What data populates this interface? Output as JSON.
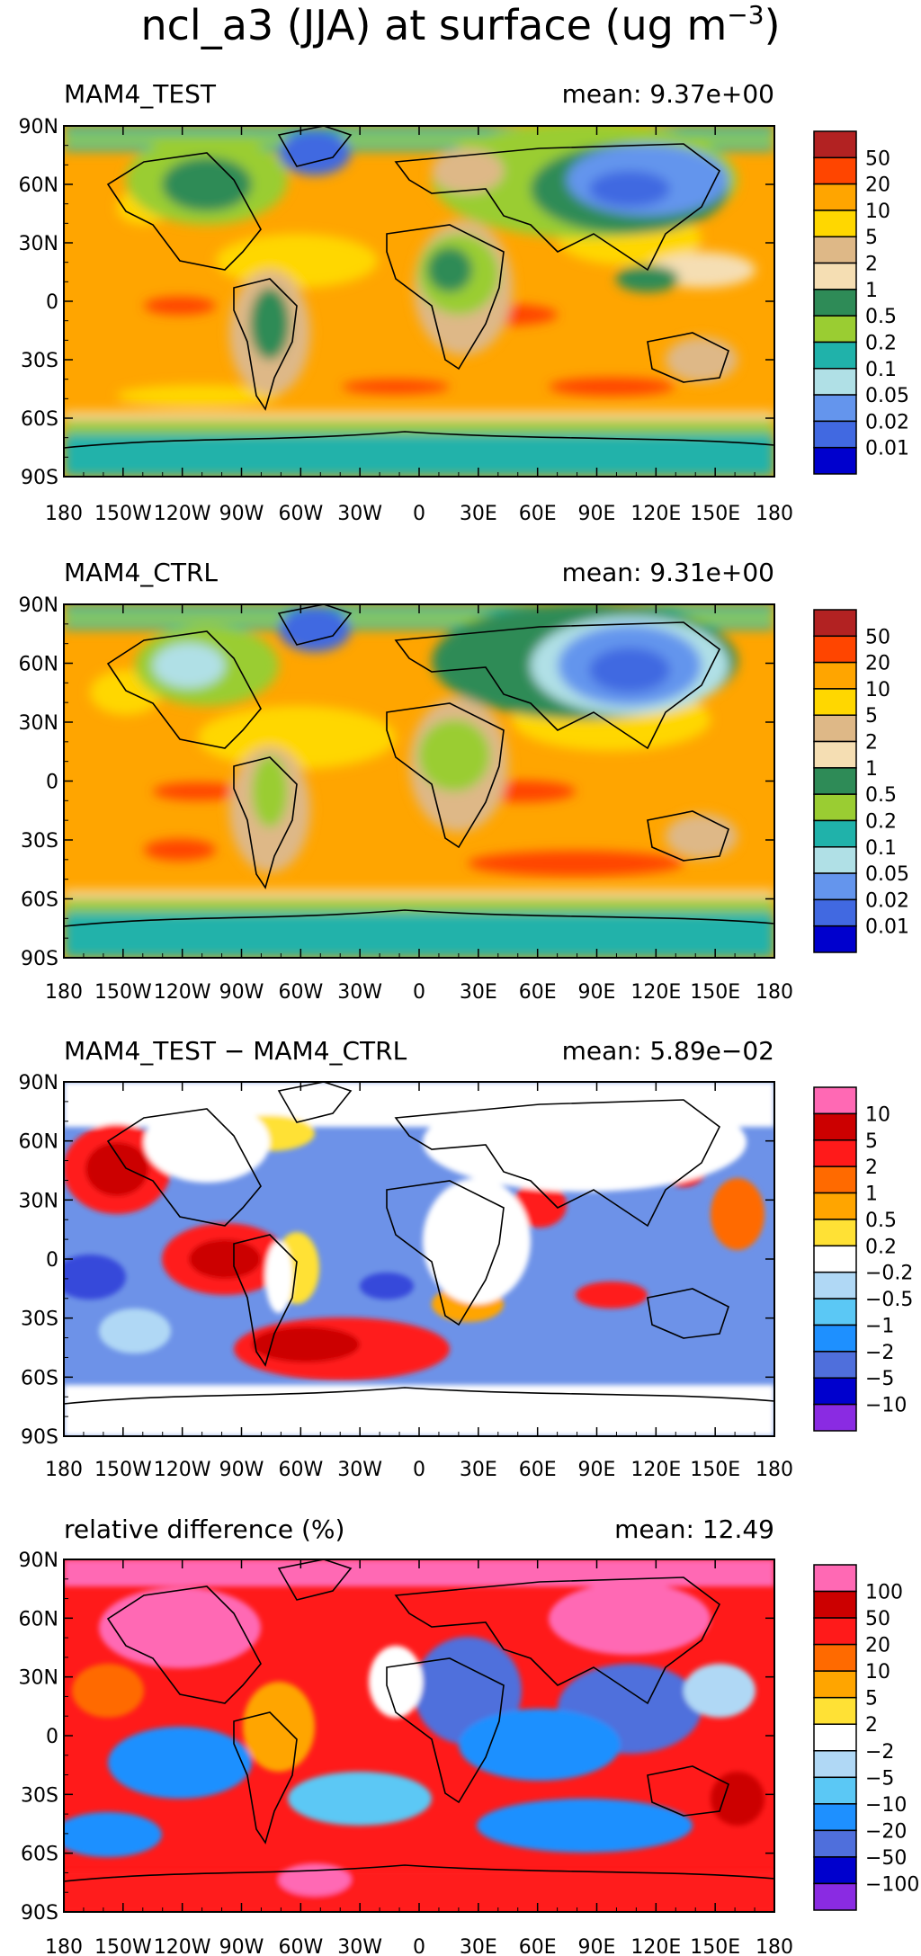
{
  "page": {
    "title": "ncl_a3 (JJA) at surface (ug m",
    "title_superscript": "−3",
    "title_close": ")"
  },
  "axes": {
    "xticks": [
      "180",
      "150W",
      "120W",
      "90W",
      "60W",
      "30W",
      "0",
      "30E",
      "60E",
      "90E",
      "120E",
      "150E",
      "180"
    ],
    "yticks": [
      "90N",
      "60N",
      "30N",
      "0",
      "30S",
      "60S",
      "90S"
    ]
  },
  "chart_data": [
    {
      "type": "heatmap",
      "title": "MAM4_TEST",
      "mean_label": "mean: 9.37e+00",
      "mean": 9.37,
      "xlim": [
        -180,
        180
      ],
      "ylim": [
        -90,
        90
      ],
      "colorbar_labels": [
        "50",
        "20",
        "10",
        "5",
        "2",
        "1",
        "0.5",
        "0.2",
        "0.1",
        "0.05",
        "0.02",
        "0.01"
      ],
      "colorbar_colors": [
        "#b22222",
        "#ff4500",
        "#ffa500",
        "#ffd700",
        "#deb887",
        "#f5deb3",
        "#2e8b57",
        "#9acd32",
        "#20b2aa",
        "#b0e0e6",
        "#6495ed",
        "#4169e1",
        "#0000cd"
      ]
    },
    {
      "type": "heatmap",
      "title": "MAM4_CTRL",
      "mean_label": "mean: 9.31e+00",
      "mean": 9.31,
      "xlim": [
        -180,
        180
      ],
      "ylim": [
        -90,
        90
      ],
      "colorbar_labels": [
        "50",
        "20",
        "10",
        "5",
        "2",
        "1",
        "0.5",
        "0.2",
        "0.1",
        "0.05",
        "0.02",
        "0.01"
      ],
      "colorbar_colors": [
        "#b22222",
        "#ff4500",
        "#ffa500",
        "#ffd700",
        "#deb887",
        "#f5deb3",
        "#2e8b57",
        "#9acd32",
        "#20b2aa",
        "#b0e0e6",
        "#6495ed",
        "#4169e1",
        "#0000cd"
      ]
    },
    {
      "type": "heatmap",
      "title": "MAM4_TEST − MAM4_CTRL",
      "mean_label": "mean: 5.89e−02",
      "mean": 0.0589,
      "xlim": [
        -180,
        180
      ],
      "ylim": [
        -90,
        90
      ],
      "colorbar_labels": [
        "10",
        "5",
        "2",
        "1",
        "0.5",
        "0.2",
        "−0.2",
        "−0.5",
        "−1",
        "−2",
        "−5",
        "−10"
      ],
      "colorbar_colors": [
        "#ff69b4",
        "#cc0000",
        "#ff1a1a",
        "#ff6a00",
        "#ffa500",
        "#ffe135",
        "#ffffff",
        "#b0d8f5",
        "#5bc8f5",
        "#1e90ff",
        "#4f6fdc",
        "#0000cd",
        "#8a2be2"
      ]
    },
    {
      "type": "heatmap",
      "title": "relative difference (%)",
      "mean_label": "mean: 12.49",
      "mean": 12.49,
      "xlim": [
        -180,
        180
      ],
      "ylim": [
        -90,
        90
      ],
      "colorbar_labels": [
        "100",
        "50",
        "20",
        "10",
        "5",
        "2",
        "−2",
        "−5",
        "−10",
        "−20",
        "−50",
        "−100"
      ],
      "colorbar_colors": [
        "#ff69b4",
        "#cc0000",
        "#ff1a1a",
        "#ff6a00",
        "#ffa500",
        "#ffe135",
        "#ffffff",
        "#b0d8f5",
        "#5bc8f5",
        "#1e90ff",
        "#4f6fdc",
        "#0000cd",
        "#8a2be2"
      ]
    }
  ]
}
